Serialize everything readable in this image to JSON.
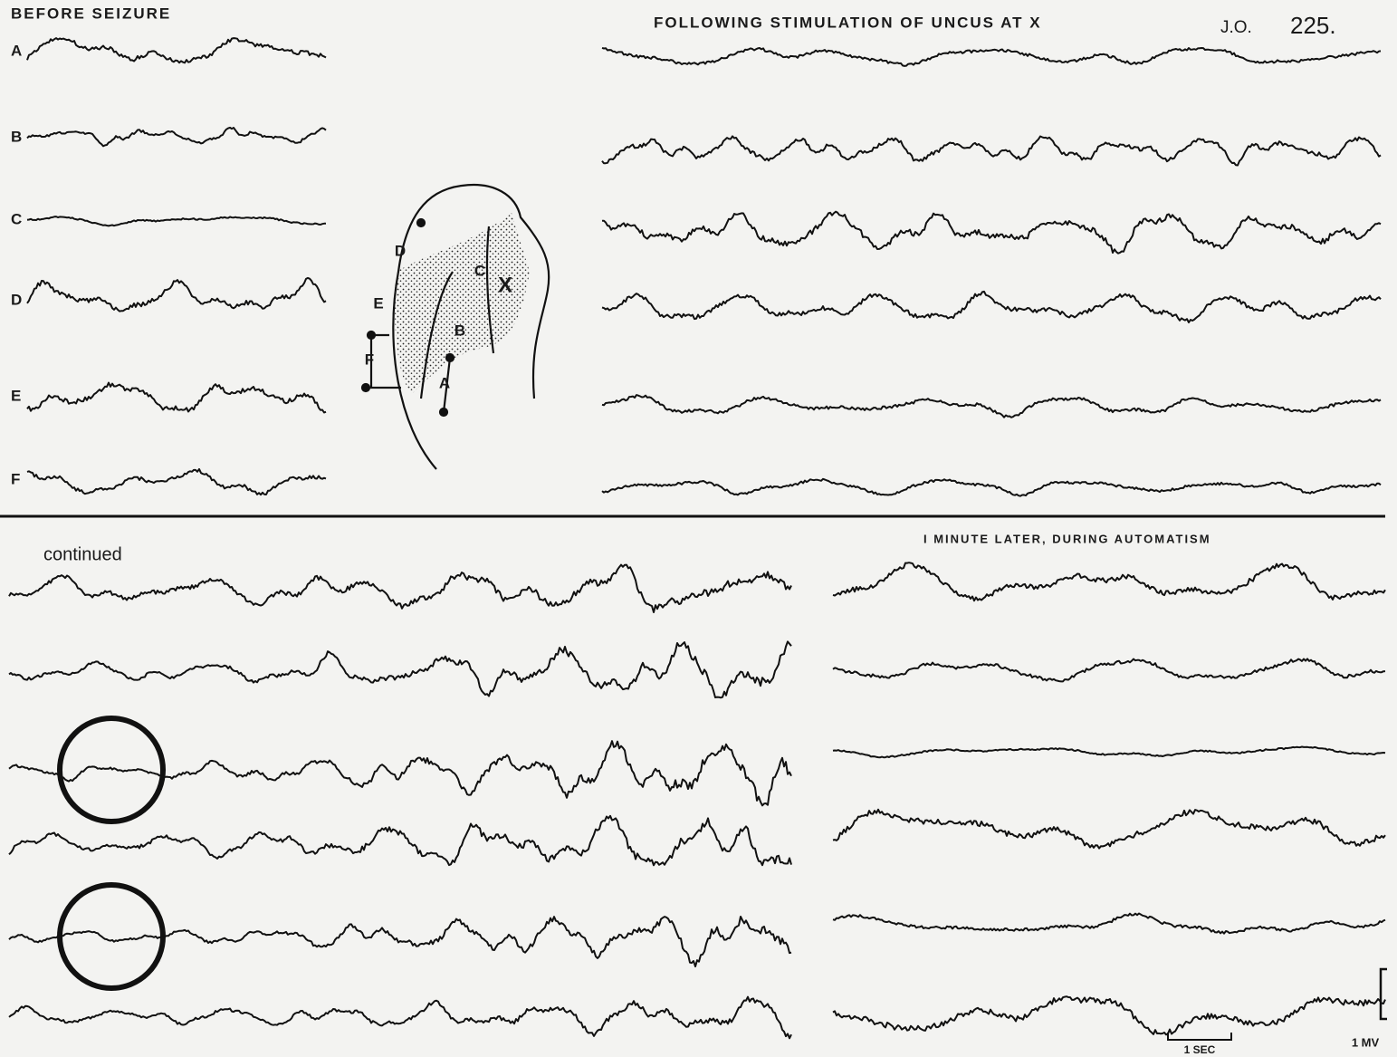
{
  "before": {
    "title": "BEFORE SEIZURE",
    "channels": [
      "A",
      "B",
      "C",
      "D",
      "E",
      "F"
    ]
  },
  "following": {
    "title": "FOLLOWING STIMULATION OF UNCUS AT X"
  },
  "case": {
    "initials": "J.O.",
    "number": "225."
  },
  "continued": {
    "title": "continued"
  },
  "later": {
    "title": "I MINUTE LATER,  DURING AUTOMATISM"
  },
  "diagram": {
    "labels": [
      "D",
      "E",
      "F",
      "A",
      "B",
      "C",
      "X"
    ]
  },
  "scale": {
    "time": "1 SEC",
    "voltage": "1 MV"
  }
}
